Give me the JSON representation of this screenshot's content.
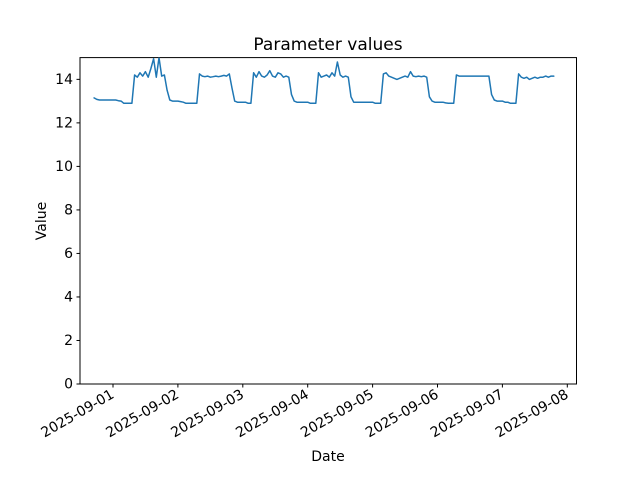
{
  "chart_data": {
    "type": "line",
    "title": "Parameter values",
    "xlabel": "Date",
    "ylabel": "Value",
    "ylim": [
      0,
      15
    ],
    "yticks": [
      0,
      2,
      4,
      6,
      8,
      10,
      12,
      14
    ],
    "xtick_labels": [
      "2025-09-01",
      "2025-09-02",
      "2025-09-03",
      "2025-09-04",
      "2025-09-05",
      "2025-09-06",
      "2025-09-07",
      "2025-09-08"
    ],
    "xtick_rotation_deg": 30,
    "grid": false,
    "legend": false,
    "x_unit": "hours since 2025-09-01 00:00",
    "series": [
      {
        "name": "parameter-values",
        "color": "#1f77b4",
        "points": [
          [
            -7,
            13.15
          ],
          [
            -6,
            13.08
          ],
          [
            -5,
            13.05
          ],
          [
            -4,
            13.05
          ],
          [
            -3,
            13.05
          ],
          [
            -2,
            13.05
          ],
          [
            -1,
            13.05
          ],
          [
            0,
            13.05
          ],
          [
            1,
            13.05
          ],
          [
            2,
            13.02
          ],
          [
            3,
            13.0
          ],
          [
            4,
            12.9
          ],
          [
            5,
            12.9
          ],
          [
            6,
            12.9
          ],
          [
            7,
            12.9
          ],
          [
            8,
            14.2
          ],
          [
            9,
            14.1
          ],
          [
            10,
            14.3
          ],
          [
            11,
            14.15
          ],
          [
            12,
            14.35
          ],
          [
            13,
            14.1
          ],
          [
            14,
            14.5
          ],
          [
            15,
            14.95
          ],
          [
            16,
            14.1
          ],
          [
            17,
            15.0
          ],
          [
            18,
            14.15
          ],
          [
            19,
            14.2
          ],
          [
            20,
            13.5
          ],
          [
            21,
            13.05
          ],
          [
            22,
            13.0
          ],
          [
            23,
            13.0
          ],
          [
            24,
            13.0
          ],
          [
            25,
            12.98
          ],
          [
            26,
            12.95
          ],
          [
            27,
            12.9
          ],
          [
            28,
            12.9
          ],
          [
            29,
            12.9
          ],
          [
            30,
            12.9
          ],
          [
            31,
            12.9
          ],
          [
            32,
            14.25
          ],
          [
            33,
            14.15
          ],
          [
            34,
            14.12
          ],
          [
            35,
            14.15
          ],
          [
            36,
            14.1
          ],
          [
            37,
            14.12
          ],
          [
            38,
            14.15
          ],
          [
            39,
            14.12
          ],
          [
            40,
            14.15
          ],
          [
            41,
            14.18
          ],
          [
            42,
            14.15
          ],
          [
            43,
            14.25
          ],
          [
            44,
            13.6
          ],
          [
            45,
            13.0
          ],
          [
            46,
            12.95
          ],
          [
            47,
            12.95
          ],
          [
            48,
            12.95
          ],
          [
            49,
            12.95
          ],
          [
            50,
            12.9
          ],
          [
            51,
            12.9
          ],
          [
            52,
            14.3
          ],
          [
            53,
            14.1
          ],
          [
            54,
            14.35
          ],
          [
            55,
            14.15
          ],
          [
            56,
            14.1
          ],
          [
            57,
            14.2
          ],
          [
            58,
            14.4
          ],
          [
            59,
            14.15
          ],
          [
            60,
            14.1
          ],
          [
            61,
            14.3
          ],
          [
            62,
            14.25
          ],
          [
            63,
            14.1
          ],
          [
            64,
            14.15
          ],
          [
            65,
            14.1
          ],
          [
            66,
            13.3
          ],
          [
            67,
            13.0
          ],
          [
            68,
            12.95
          ],
          [
            69,
            12.95
          ],
          [
            70,
            12.95
          ],
          [
            71,
            12.95
          ],
          [
            72,
            12.95
          ],
          [
            73,
            12.9
          ],
          [
            74,
            12.9
          ],
          [
            75,
            12.9
          ],
          [
            76,
            14.3
          ],
          [
            77,
            14.1
          ],
          [
            78,
            14.15
          ],
          [
            79,
            14.2
          ],
          [
            80,
            14.1
          ],
          [
            81,
            14.3
          ],
          [
            82,
            14.15
          ],
          [
            83,
            14.8
          ],
          [
            84,
            14.2
          ],
          [
            85,
            14.1
          ],
          [
            86,
            14.15
          ],
          [
            87,
            14.1
          ],
          [
            88,
            13.2
          ],
          [
            89,
            12.95
          ],
          [
            90,
            12.95
          ],
          [
            91,
            12.95
          ],
          [
            92,
            12.95
          ],
          [
            93,
            12.95
          ],
          [
            94,
            12.95
          ],
          [
            95,
            12.95
          ],
          [
            96,
            12.95
          ],
          [
            97,
            12.9
          ],
          [
            98,
            12.9
          ],
          [
            99,
            12.9
          ],
          [
            100,
            14.25
          ],
          [
            101,
            14.3
          ],
          [
            102,
            14.15
          ],
          [
            103,
            14.1
          ],
          [
            104,
            14.05
          ],
          [
            105,
            14.0
          ],
          [
            106,
            14.05
          ],
          [
            107,
            14.1
          ],
          [
            108,
            14.15
          ],
          [
            109,
            14.1
          ],
          [
            110,
            14.35
          ],
          [
            111,
            14.15
          ],
          [
            112,
            14.12
          ],
          [
            113,
            14.15
          ],
          [
            114,
            14.12
          ],
          [
            115,
            14.15
          ],
          [
            116,
            14.1
          ],
          [
            117,
            13.2
          ],
          [
            118,
            13.0
          ],
          [
            119,
            12.95
          ],
          [
            120,
            12.95
          ],
          [
            121,
            12.95
          ],
          [
            122,
            12.95
          ],
          [
            123,
            12.92
          ],
          [
            124,
            12.9
          ],
          [
            125,
            12.9
          ],
          [
            126,
            12.9
          ],
          [
            127,
            14.2
          ],
          [
            128,
            14.15
          ],
          [
            129,
            14.15
          ],
          [
            130,
            14.15
          ],
          [
            131,
            14.15
          ],
          [
            132,
            14.15
          ],
          [
            133,
            14.15
          ],
          [
            134,
            14.15
          ],
          [
            135,
            14.15
          ],
          [
            136,
            14.15
          ],
          [
            137,
            14.15
          ],
          [
            138,
            14.15
          ],
          [
            139,
            14.15
          ],
          [
            140,
            13.3
          ],
          [
            141,
            13.05
          ],
          [
            142,
            13.0
          ],
          [
            143,
            13.0
          ],
          [
            144,
            13.0
          ],
          [
            145,
            12.95
          ],
          [
            146,
            12.95
          ],
          [
            147,
            12.9
          ],
          [
            148,
            12.9
          ],
          [
            149,
            12.9
          ],
          [
            150,
            14.25
          ],
          [
            151,
            14.1
          ],
          [
            152,
            14.05
          ],
          [
            153,
            14.1
          ],
          [
            154,
            14.0
          ],
          [
            155,
            14.05
          ],
          [
            156,
            14.1
          ],
          [
            157,
            14.05
          ],
          [
            158,
            14.1
          ],
          [
            159,
            14.1
          ],
          [
            160,
            14.15
          ],
          [
            161,
            14.1
          ],
          [
            162,
            14.15
          ],
          [
            163,
            14.15
          ]
        ]
      }
    ]
  }
}
